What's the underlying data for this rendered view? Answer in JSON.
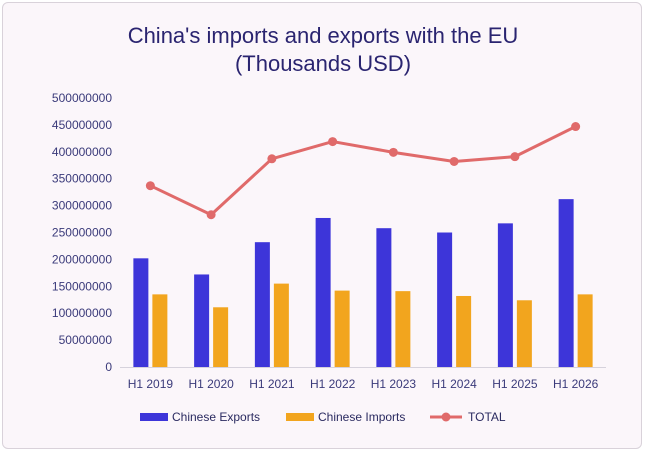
{
  "chart_data": {
    "type": "bar",
    "title_lines": [
      "China's imports and exports with the EU",
      "(Thousands USD)"
    ],
    "categories": [
      "H1 2019",
      "H1 2020",
      "H1 2021",
      "H1 2022",
      "H1 2023",
      "H1 2024",
      "H1 2025",
      "H1 2026"
    ],
    "series": [
      {
        "name": "Chinese Exports",
        "type": "bar",
        "color": "#3d35d9",
        "values": [
          202000000,
          172000000,
          232000000,
          277000000,
          258000000,
          250000000,
          267000000,
          312000000
        ]
      },
      {
        "name": "Chinese Imports",
        "type": "bar",
        "color": "#f2a51e",
        "values": [
          135000000,
          111000000,
          155000000,
          142000000,
          141000000,
          132000000,
          124000000,
          135000000
        ]
      },
      {
        "name": "TOTAL",
        "type": "line",
        "color": "#e06a6a",
        "values": [
          337000000,
          283000000,
          387000000,
          419000000,
          399000000,
          382000000,
          391000000,
          447000000
        ]
      }
    ],
    "y_ticks": [
      "0",
      "50000000",
      "100000000",
      "150000000",
      "200000000",
      "250000000",
      "300000000",
      "350000000",
      "400000000",
      "450000000",
      "500000000"
    ],
    "ylim": [
      0,
      500000000
    ],
    "legend_position": "bottom",
    "grid": false
  }
}
